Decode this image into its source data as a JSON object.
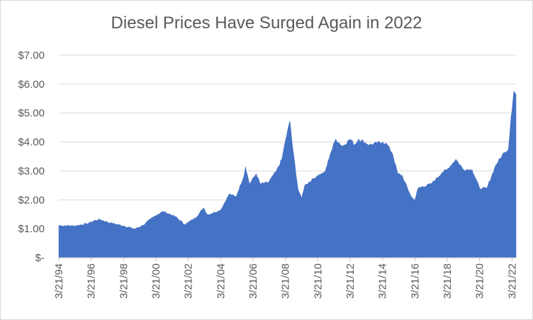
{
  "chart_data": {
    "type": "area",
    "title": "Diesel Prices Have Surged Again in 2022",
    "xlabel": "",
    "ylabel": "",
    "ylim": [
      0,
      7
    ],
    "grid": true,
    "legend": "none",
    "color": "#4472c4",
    "y_ticks": [
      0,
      1,
      2,
      3,
      4,
      5,
      6,
      7
    ],
    "y_tick_labels": [
      "$-",
      "$1.00",
      "$2.00",
      "$3.00",
      "$4.00",
      "$5.00",
      "$6.00",
      "$7.00"
    ],
    "x_tick_labels": [
      "3/21/94",
      "3/21/96",
      "3/21/98",
      "3/21/00",
      "3/21/02",
      "3/21/04",
      "3/21/06",
      "3/21/08",
      "3/21/10",
      "3/21/12",
      "3/21/14",
      "3/21/16",
      "3/21/18",
      "3/21/20",
      "3/21/22"
    ],
    "x_range": [
      "1994-03-21",
      "2022-06-20"
    ],
    "series": [
      {
        "x": [
          "1994-03-21",
          "1995-03-21",
          "1996-01-01",
          "1996-06-01",
          "1996-10-01",
          "1997-06-01",
          "1998-03-21",
          "1998-12-01",
          "1999-06-01",
          "2000-03-01",
          "2000-09-01",
          "2001-01-01",
          "2001-06-01",
          "2002-01-01",
          "2002-03-21",
          "2002-09-01",
          "2003-03-01",
          "2003-06-01",
          "2004-03-21",
          "2004-10-01",
          "2005-03-01",
          "2005-09-01",
          "2005-10-01",
          "2006-01-01",
          "2006-06-01",
          "2006-09-01",
          "2007-03-01",
          "2007-09-01",
          "2008-01-01",
          "2008-03-21",
          "2008-07-01",
          "2008-09-01",
          "2009-01-01",
          "2009-03-21",
          "2009-06-01",
          "2010-01-01",
          "2010-03-21",
          "2010-09-01",
          "2011-01-01",
          "2011-05-01",
          "2011-10-01",
          "2012-03-21",
          "2012-07-01",
          "2012-10-01",
          "2013-06-01",
          "2014-03-21",
          "2014-07-01",
          "2014-11-01",
          "2015-03-01",
          "2015-06-01",
          "2016-01-01",
          "2016-03-21",
          "2016-06-01",
          "2017-03-21",
          "2017-12-01",
          "2018-03-21",
          "2018-10-01",
          "2019-03-21",
          "2019-10-01",
          "2020-03-21",
          "2020-09-01",
          "2021-03-21",
          "2021-10-01",
          "2022-01-01",
          "2022-03-01",
          "2022-05-01",
          "2022-06-20"
        ],
        "values": [
          1.11,
          1.1,
          1.18,
          1.28,
          1.32,
          1.2,
          1.1,
          0.99,
          1.12,
          1.45,
          1.6,
          1.52,
          1.42,
          1.15,
          1.22,
          1.38,
          1.72,
          1.48,
          1.65,
          2.2,
          2.1,
          2.85,
          3.15,
          2.55,
          2.9,
          2.55,
          2.6,
          3.0,
          3.4,
          4.05,
          4.72,
          3.8,
          2.35,
          2.05,
          2.5,
          2.75,
          2.85,
          2.95,
          3.6,
          4.1,
          3.85,
          4.1,
          3.9,
          4.1,
          3.9,
          4.0,
          3.92,
          3.6,
          2.9,
          2.85,
          2.1,
          2.0,
          2.4,
          2.55,
          2.95,
          3.05,
          3.4,
          3.05,
          3.05,
          2.4,
          2.4,
          3.2,
          3.65,
          3.75,
          4.85,
          5.75,
          5.65
        ]
      }
    ]
  }
}
